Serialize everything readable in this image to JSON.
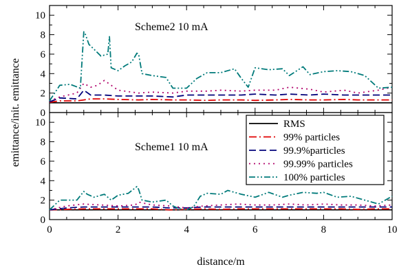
{
  "chart_data": {
    "type": "line",
    "xlabel": "distance/m",
    "ylabel": "emittance/init. emittance",
    "xlim": [
      0,
      10
    ],
    "ylim": [
      0,
      11
    ],
    "x_ticks": [
      "0",
      "2",
      "4",
      "6",
      "8",
      "10"
    ],
    "y_ticks": [
      "0",
      "2",
      "4",
      "6",
      "8",
      "10"
    ],
    "grid": false,
    "legend": {
      "placement": "bottom-right",
      "entries": [
        {
          "label": "RMS",
          "color": "#000000",
          "dash": "solid"
        },
        {
          "label": "99% particles",
          "color": "#e00000",
          "dash": "dash-dot"
        },
        {
          "label": "99.9%particles",
          "color": "#00007a",
          "dash": "dash"
        },
        {
          "label": "99.99% particles",
          "color": "#b0006a",
          "dash": "dot"
        },
        {
          "label": "100% particles",
          "color": "#007a7a",
          "dash": "dash-dot-dot"
        }
      ]
    },
    "panels": [
      {
        "title": "Scheme2 10 mA",
        "series": [
          {
            "name": "RMS",
            "x": [
              0,
              10
            ],
            "y": [
              1.0,
              1.0
            ]
          },
          {
            "name": "99% particles",
            "x": [
              0,
              0.3,
              0.8,
              1.0,
              1.2,
              1.6,
              2.0,
              2.6,
              3.0,
              3.6,
              4.0,
              4.6,
              5.0,
              5.6,
              6.0,
              6.6,
              7.0,
              7.6,
              8.0,
              8.6,
              9.0,
              9.6,
              10
            ],
            "y": [
              1.05,
              1.2,
              1.2,
              1.3,
              1.4,
              1.4,
              1.35,
              1.3,
              1.35,
              1.3,
              1.3,
              1.25,
              1.3,
              1.3,
              1.25,
              1.3,
              1.35,
              1.3,
              1.3,
              1.35,
              1.3,
              1.3,
              1.3
            ]
          },
          {
            "name": "99.9%particles",
            "x": [
              0,
              0.3,
              0.8,
              1.0,
              1.2,
              1.6,
              2.0,
              2.6,
              3.0,
              3.6,
              4.0,
              4.6,
              5.0,
              5.6,
              6.0,
              6.6,
              7.0,
              7.6,
              8.0,
              8.6,
              9.0,
              9.6,
              10
            ],
            "y": [
              1.1,
              1.5,
              1.4,
              2.3,
              1.8,
              1.8,
              1.7,
              1.7,
              1.7,
              1.6,
              1.8,
              1.8,
              1.8,
              1.8,
              1.9,
              1.8,
              1.9,
              1.8,
              1.9,
              1.8,
              1.8,
              1.8,
              1.8
            ]
          },
          {
            "name": "99.99% particles",
            "x": [
              0,
              0.3,
              0.8,
              1.0,
              1.2,
              1.4,
              1.6,
              2.0,
              2.6,
              3.0,
              3.6,
              4.0,
              4.6,
              5.0,
              5.6,
              6.0,
              6.6,
              7.0,
              7.6,
              8.0,
              8.6,
              9.0,
              9.6,
              10
            ],
            "y": [
              1.2,
              1.6,
              2.0,
              3.0,
              2.6,
              2.8,
              3.3,
              2.3,
              2.0,
              2.1,
              2.0,
              2.2,
              2.2,
              2.3,
              2.2,
              2.3,
              2.3,
              2.6,
              2.4,
              2.1,
              2.3,
              2.0,
              2.3,
              2.6
            ]
          },
          {
            "name": "100% particles",
            "x": [
              0,
              0.3,
              0.6,
              0.9,
              1.0,
              1.05,
              1.15,
              1.3,
              1.5,
              1.7,
              1.75,
              1.8,
              2.0,
              2.2,
              2.4,
              2.55,
              2.6,
              2.7,
              3.0,
              3.4,
              3.6,
              3.8,
              4.0,
              4.3,
              4.6,
              5.0,
              5.4,
              5.6,
              5.8,
              6.0,
              6.4,
              6.8,
              7.0,
              7.4,
              7.6,
              8.0,
              8.4,
              8.8,
              9.2,
              9.6,
              10
            ],
            "y": [
              1.2,
              2.8,
              2.9,
              2.5,
              8.3,
              8.0,
              7.0,
              6.5,
              5.8,
              6.0,
              7.8,
              4.6,
              4.3,
              4.8,
              5.2,
              6.1,
              6.0,
              4.0,
              3.8,
              3.6,
              2.5,
              2.5,
              2.5,
              3.5,
              4.1,
              4.1,
              4.5,
              3.5,
              2.6,
              4.6,
              4.4,
              4.5,
              3.8,
              4.7,
              3.9,
              4.2,
              4.3,
              4.2,
              3.8,
              2.5,
              2.6
            ]
          }
        ]
      },
      {
        "title": "Scheme1 10 mA",
        "series": [
          {
            "name": "RMS",
            "x": [
              0,
              10
            ],
            "y": [
              1.0,
              1.0
            ]
          },
          {
            "name": "99% particles",
            "x": [
              0,
              0.5,
              1.0,
              1.5,
              2.0,
              2.5,
              3.0,
              3.5,
              4.0,
              4.5,
              5.0,
              5.5,
              6.0,
              6.5,
              7.0,
              7.5,
              8.0,
              8.5,
              9.0,
              9.5,
              10
            ],
            "y": [
              1.0,
              1.05,
              1.1,
              1.1,
              1.1,
              1.1,
              1.1,
              1.0,
              1.05,
              1.1,
              1.05,
              1.1,
              1.1,
              1.1,
              1.1,
              1.1,
              1.1,
              1.1,
              1.05,
              1.1,
              1.1
            ]
          },
          {
            "name": "99.9%particles",
            "x": [
              0,
              0.5,
              1.0,
              1.5,
              2.0,
              2.5,
              3.0,
              3.5,
              4.0,
              4.5,
              5.0,
              5.5,
              6.0,
              6.5,
              7.0,
              7.5,
              8.0,
              8.5,
              9.0,
              9.5,
              10
            ],
            "y": [
              1.0,
              1.2,
              1.3,
              1.3,
              1.3,
              1.3,
              1.3,
              1.2,
              1.2,
              1.3,
              1.3,
              1.3,
              1.3,
              1.3,
              1.3,
              1.3,
              1.3,
              1.3,
              1.3,
              1.3,
              1.3
            ]
          },
          {
            "name": "99.99% particles",
            "x": [
              0,
              0.5,
              1.0,
              1.5,
              2.0,
              2.5,
              2.6,
              3.0,
              3.5,
              4.0,
              4.5,
              5.0,
              5.5,
              6.0,
              6.5,
              7.0,
              7.5,
              8.0,
              8.5,
              9.0,
              9.5,
              10
            ],
            "y": [
              1.0,
              1.4,
              1.6,
              1.5,
              1.4,
              1.5,
              1.8,
              1.5,
              1.4,
              1.2,
              1.4,
              1.5,
              1.6,
              1.5,
              1.5,
              1.6,
              1.5,
              1.6,
              1.5,
              1.5,
              1.4,
              1.5
            ]
          },
          {
            "name": "100% particles",
            "x": [
              0,
              0.3,
              0.8,
              1.0,
              1.1,
              1.3,
              1.6,
              1.8,
              2.0,
              2.3,
              2.55,
              2.6,
              2.7,
              3.0,
              3.4,
              3.6,
              3.8,
              4.0,
              4.2,
              4.4,
              4.6,
              5.0,
              5.2,
              5.6,
              6.0,
              6.4,
              6.8,
              7.0,
              7.4,
              7.8,
              8.0,
              8.4,
              8.8,
              9.2,
              9.6,
              10
            ],
            "y": [
              1.0,
              2.0,
              2.0,
              2.9,
              2.6,
              2.3,
              2.6,
              2.0,
              2.5,
              2.7,
              3.4,
              3.1,
              2.0,
              1.8,
              2.0,
              1.4,
              1.1,
              1.0,
              1.3,
              2.4,
              2.7,
              2.6,
              3.0,
              2.6,
              2.3,
              2.8,
              2.3,
              2.5,
              2.8,
              2.7,
              2.8,
              2.3,
              2.4,
              2.0,
              1.6,
              2.4
            ]
          }
        ]
      }
    ]
  }
}
